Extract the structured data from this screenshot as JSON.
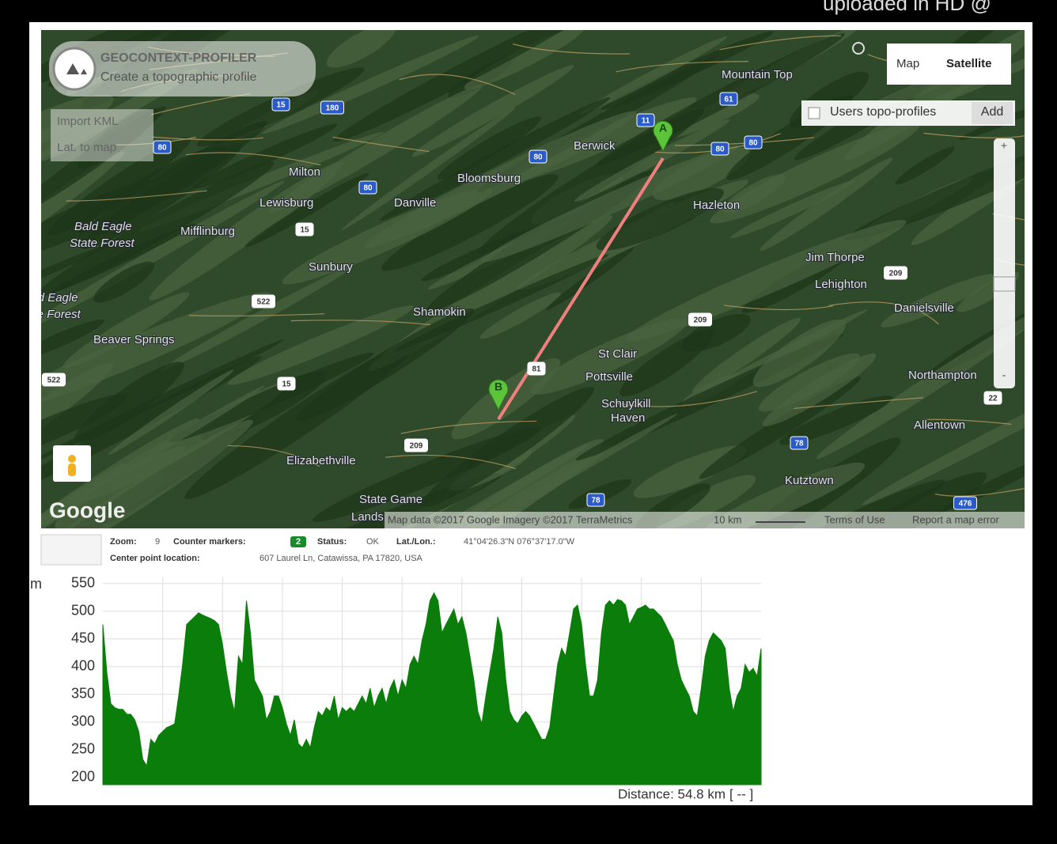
{
  "watermark": "uploaded in HD @",
  "app": {
    "title": "GEOCONTEXT-PROFILER",
    "subtitle": "Create a topographic profile",
    "buttons": [
      "Import KML",
      "Lat. to map"
    ]
  },
  "map": {
    "type_buttons": [
      "Map",
      "Satellite"
    ],
    "users_profiles": "Users topo-profiles",
    "add": "Add",
    "zoom_plus": "+",
    "zoom_minus": "-",
    "logo": "Google",
    "places": [
      "Mountain Top",
      "Berwick",
      "Milton",
      "Bloomsburg",
      "Lewisburg",
      "Danville",
      "Hazleton",
      "Bald Eagle",
      "State Forest",
      "Mifflinburg",
      "Sunbury",
      "Jim Thorpe",
      "Lehighton",
      "Danielsville",
      "Bald Eagle",
      "State Forest",
      "Shamokin",
      "Beaver Springs",
      "St Clair",
      "Pottsville",
      "Northampton",
      "Schuylkill",
      "Haven",
      "Allentown",
      "Elizabethville",
      "Kutztown",
      "State Game",
      "Lands"
    ],
    "shields": [
      "15",
      "180",
      "80",
      "80",
      "80",
      "80",
      "80",
      "11",
      "61",
      "15",
      "522",
      "522",
      "15",
      "81",
      "209",
      "209",
      "209",
      "78",
      "78",
      "22",
      "476"
    ],
    "markers": [
      "A",
      "B"
    ],
    "attribution": "Map data ©2017 Google Imagery ©2017 TerraMetrics",
    "scale": "10 km",
    "terms": "Terms of Use",
    "report": "Report a map error"
  },
  "status": {
    "zoom_label": "Zoom:",
    "zoom": "9",
    "markers_label": "Counter markers:",
    "markers": "2",
    "status_label": "Status:",
    "status": "OK",
    "latlon_label": "Lat./Lon.:",
    "latlon": "41°04'26.3\"N 076°37'17.0\"W",
    "center_label": "Center point location:",
    "center": "607 Laurel Ln, Catawissa, PA 17820, USA"
  },
  "chart_data": {
    "type": "area",
    "y_label": "m",
    "ylim": [
      187,
      561
    ],
    "yticks": [
      200,
      250,
      300,
      350,
      400,
      450,
      500,
      550
    ],
    "grid": true,
    "color": "#0b7d0b",
    "values": [
      476,
      390,
      333,
      326,
      323,
      323,
      314,
      314,
      304,
      283,
      233,
      221,
      269,
      261,
      276,
      283,
      290,
      293,
      297,
      347,
      404,
      476,
      483,
      490,
      497,
      493,
      490,
      487,
      483,
      476,
      440,
      390,
      347,
      319,
      419,
      404,
      519,
      461,
      376,
      361,
      347,
      304,
      319,
      347,
      347,
      326,
      297,
      276,
      304,
      261,
      254,
      269,
      254,
      290,
      319,
      311,
      326,
      319,
      347,
      304,
      326,
      319,
      326,
      319,
      333,
      347,
      333,
      361,
      326,
      347,
      361,
      333,
      361,
      376,
      347,
      376,
      361,
      404,
      419,
      404,
      447,
      476,
      519,
      533,
      519,
      461,
      476,
      490,
      504,
      476,
      490,
      461,
      419,
      376,
      319,
      297,
      347,
      390,
      433,
      490,
      461,
      376,
      319,
      304,
      297,
      311,
      319,
      311,
      297,
      283,
      269,
      269,
      290,
      347,
      404,
      433,
      419,
      461,
      504,
      511,
      476,
      404,
      347,
      347,
      376,
      461,
      511,
      519,
      511,
      521,
      519,
      511,
      476,
      490,
      504,
      507,
      511,
      504,
      504,
      497,
      490,
      476,
      461,
      447,
      404,
      376,
      361,
      347,
      319,
      311,
      361,
      419,
      447,
      461,
      454,
      447,
      433,
      361,
      319,
      347,
      361,
      404,
      390,
      397,
      383,
      433
    ],
    "distance_label": "Distance: 54.8 km",
    "toggle": "[ -- ]"
  }
}
